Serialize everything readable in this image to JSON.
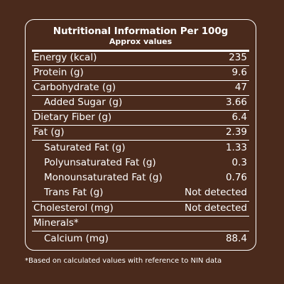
{
  "panel": {
    "title": "Nutritional Information Per 100g",
    "subtitle": "Approx values"
  },
  "rows": [
    {
      "label": "Energy (kcal)",
      "value": "235",
      "indent": false
    },
    {
      "label": "Protein (g)",
      "value": "9.6",
      "indent": false
    },
    {
      "label": "Carbohydrate (g)",
      "value": "47",
      "indent": false
    },
    {
      "label": "Added Sugar (g)",
      "value": "3.66",
      "indent": true
    },
    {
      "label": "Dietary Fiber (g)",
      "value": "6.4",
      "indent": false
    },
    {
      "label": "Fat (g)",
      "value": "2.39",
      "indent": false
    },
    {
      "label": "Saturated Fat (g)",
      "value": "1.33",
      "indent": true
    },
    {
      "label": "Polyunsaturated Fat (g)",
      "value": "0.3",
      "indent": true
    },
    {
      "label": "Monounsaturated Fat (g)",
      "value": "0.76",
      "indent": true
    },
    {
      "label": "Trans Fat (g)",
      "value": "Not detected",
      "indent": true
    },
    {
      "label": "Cholesterol (mg)",
      "value": "Not detected",
      "indent": false
    },
    {
      "label": "Minerals*",
      "value": "",
      "indent": false
    },
    {
      "label": "Calcium (mg)",
      "value": "88.4",
      "indent": true
    }
  ],
  "footnote": "*Based on calculated values with reference to NIN data",
  "colors": {
    "background": "#4a2a1c",
    "text": "#ffffff"
  }
}
